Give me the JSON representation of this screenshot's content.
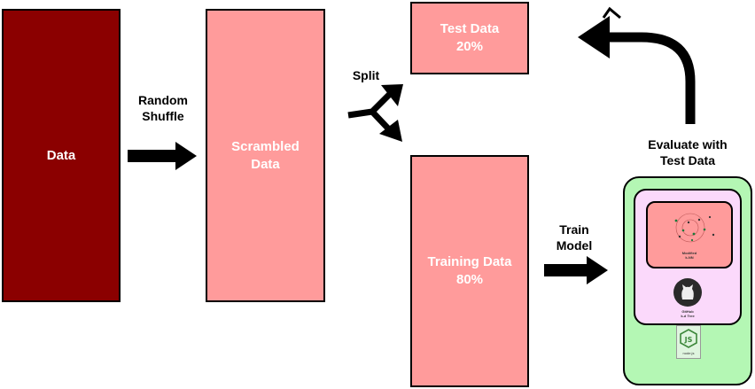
{
  "boxes": {
    "data": "Data",
    "scrambled_line1": "Scrambled",
    "scrambled_line2": "Data",
    "test_line1": "Test Data",
    "test_line2": "20%",
    "training_line1": "Training Data",
    "training_line2": "80%"
  },
  "labels": {
    "shuffle_line1": "Random",
    "shuffle_line2": "Shuffle",
    "split": "Split",
    "train_line1": "Train",
    "train_line2": "Model",
    "evaluate_line1": "Evaluate with",
    "evaluate_line2": "Test Data"
  },
  "device": {
    "screen_caption_1": "Modified",
    "screen_caption_2": "k-NN",
    "github_caption_1": "GitHub",
    "github_caption_2": "k-d Tree",
    "node_caption": "node.js"
  },
  "icons": {
    "shuffle_arrow": "arrow-right-icon",
    "split_arrow": "split-arrow-icon",
    "train_arrow": "arrow-right-icon",
    "evaluate_arrow": "curved-arrow-icon",
    "github": "github-octocat-icon",
    "nodejs": "nodejs-hexagon-icon"
  },
  "colors": {
    "data_box": "#8b0000",
    "pink_box": "#ff9b9b",
    "device_outer": "#b4f7b4",
    "device_inner": "#fbd9fb"
  }
}
